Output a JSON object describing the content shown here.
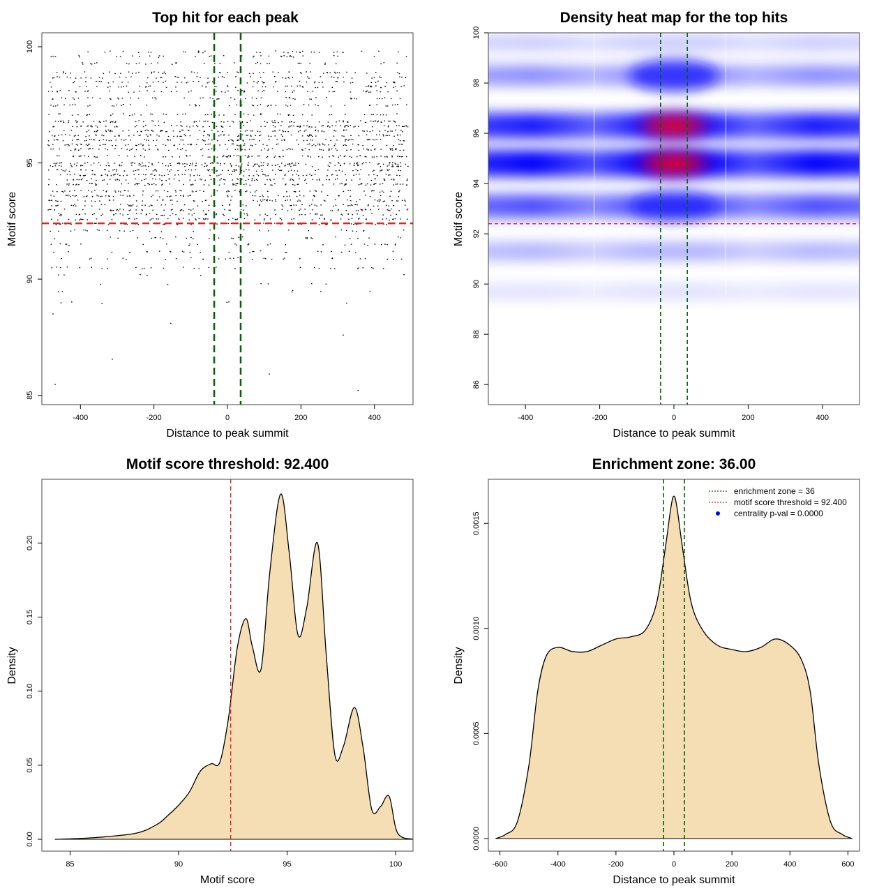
{
  "chart_data": [
    {
      "type": "scatter",
      "title": "Top hit for each peak",
      "xlabel": "Distance to peak summit",
      "ylabel": "Motif score",
      "xlim": [
        -505,
        505
      ],
      "ylim": [
        84.6,
        100.6
      ],
      "x_ticks": [
        "-400",
        "-200",
        "0",
        "200",
        "400"
      ],
      "x_tick_values": [
        -400,
        -200,
        0,
        200,
        400
      ],
      "y_ticks": [
        "85",
        "90",
        "95",
        "100"
      ],
      "y_tick_values": [
        85,
        90,
        95,
        100
      ],
      "points_description_levels": [
        99.8,
        99.6,
        99.3,
        98.9,
        98.7,
        98.5,
        98.3,
        98.1,
        97.8,
        97.5,
        97.1,
        96.8,
        96.6,
        96.4,
        96.2,
        96.0,
        95.8,
        95.6,
        95.3,
        95.0,
        94.9,
        94.7,
        94.5,
        94.3,
        94.1,
        93.8,
        93.6,
        93.4,
        93.2,
        93.0,
        92.8,
        92.6,
        92.4,
        92.1,
        91.8,
        91.5,
        91.2,
        90.9,
        90.5,
        90.2,
        89.8,
        89.5,
        89.0,
        88.5,
        88.1,
        87.6,
        86.6,
        85.9,
        85.5,
        85.2
      ],
      "vlines": [
        -36,
        36
      ],
      "vline_color": "#006400",
      "hline": 92.4,
      "hline_color": "#d62728",
      "grid": false
    },
    {
      "type": "heatmap",
      "title": "Density heat map for the top hits",
      "xlabel": "Distance to peak summit",
      "ylabel": "Motif score",
      "xlim": [
        -500,
        500
      ],
      "ylim": [
        85.2,
        100.0
      ],
      "x_ticks": [
        "-400",
        "-200",
        "0",
        "200",
        "400"
      ],
      "x_tick_values": [
        -400,
        -200,
        0,
        200,
        400
      ],
      "y_ticks": [
        "86",
        "88",
        "90",
        "92",
        "94",
        "96",
        "98",
        "100"
      ],
      "y_tick_values": [
        86,
        88,
        90,
        92,
        94,
        96,
        98,
        100
      ],
      "color_scale": [
        "#ffffff",
        "#0000ff",
        "#ff0000"
      ],
      "bands": [
        {
          "y": 94.8,
          "intensity": 1.0,
          "center_boost": 1.0
        },
        {
          "y": 96.3,
          "intensity": 0.9,
          "center_boost": 0.9
        },
        {
          "y": 93.1,
          "intensity": 0.7,
          "center_boost": 0.55
        },
        {
          "y": 98.3,
          "intensity": 0.45,
          "center_boost": 0.7
        },
        {
          "y": 99.6,
          "intensity": 0.2,
          "center_boost": 0.2
        },
        {
          "y": 91.3,
          "intensity": 0.3,
          "center_boost": 0.1
        },
        {
          "y": 89.7,
          "intensity": 0.12,
          "center_boost": 0.05
        }
      ],
      "vlines": [
        -36,
        36
      ],
      "vline_color": "#006400",
      "hline": 92.4,
      "hline_color": "#d62728",
      "grid": false
    },
    {
      "type": "area",
      "title": "Motif score threshold: 92.400",
      "xlabel": "Motif score",
      "ylabel": "Density",
      "xlim": [
        83.7,
        100.8
      ],
      "ylim": [
        -0.008,
        0.243
      ],
      "x_ticks": [
        "85",
        "90",
        "95",
        "100"
      ],
      "x_tick_values": [
        85,
        90,
        95,
        100
      ],
      "y_ticks": [
        "0.00",
        "0.05",
        "0.10",
        "0.15",
        "0.20"
      ],
      "y_tick_values": [
        0,
        0.05,
        0.1,
        0.15,
        0.2
      ],
      "x": [
        84.3,
        86.0,
        88.0,
        89.0,
        89.5,
        90.0,
        90.5,
        91.0,
        91.5,
        91.9,
        92.3,
        92.7,
        93.1,
        93.4,
        93.8,
        94.2,
        94.7,
        95.1,
        95.5,
        95.9,
        96.4,
        96.8,
        97.2,
        97.6,
        98.1,
        98.5,
        98.9,
        99.3,
        99.7,
        100.1,
        100.9
      ],
      "y": [
        0.0,
        0.001,
        0.004,
        0.01,
        0.016,
        0.023,
        0.032,
        0.046,
        0.051,
        0.052,
        0.082,
        0.129,
        0.149,
        0.13,
        0.115,
        0.18,
        0.233,
        0.193,
        0.138,
        0.156,
        0.2,
        0.125,
        0.057,
        0.063,
        0.089,
        0.062,
        0.02,
        0.022,
        0.029,
        0.004,
        0.0
      ],
      "fill_color": "#f5deb3",
      "vline": 92.4,
      "vline_color": "#d62728",
      "grid": false
    },
    {
      "type": "area",
      "title": "Enrichment zone: 36.00",
      "xlabel": "Distance to peak summit",
      "ylabel": "Density",
      "xlim": [
        -640,
        640
      ],
      "ylim": [
        -6e-05,
        0.00171
      ],
      "x_ticks": [
        "-600",
        "-400",
        "-200",
        "0",
        "200",
        "400",
        "600"
      ],
      "x_tick_values": [
        -600,
        -400,
        -200,
        0,
        200,
        400,
        600
      ],
      "y_ticks": [
        "0.0000",
        "0.0005",
        "0.0010",
        "0.0015"
      ],
      "y_tick_values": [
        0,
        0.0005,
        0.001,
        0.0015
      ],
      "x": [
        -615,
        -580,
        -540,
        -500,
        -470,
        -440,
        -400,
        -350,
        -300,
        -250,
        -200,
        -150,
        -100,
        -60,
        -30,
        -10,
        0,
        10,
        30,
        60,
        100,
        150,
        200,
        250,
        300,
        350,
        400,
        440,
        470,
        500,
        540,
        580,
        615
      ],
      "y": [
        0.0,
        2e-05,
        8e-05,
        0.00035,
        0.0007,
        0.00087,
        0.00091,
        0.00089,
        0.00089,
        0.00092,
        0.00095,
        0.00096,
        0.00099,
        0.00112,
        0.00138,
        0.00158,
        0.00163,
        0.00158,
        0.00138,
        0.00112,
        0.00099,
        0.00092,
        0.0009,
        0.00089,
        0.00091,
        0.00095,
        0.00092,
        0.00085,
        0.0007,
        0.00035,
        8e-05,
        2e-05,
        0.0
      ],
      "fill_color": "#f5deb3",
      "vlines": [
        -36,
        36
      ],
      "vline_color": "#006400",
      "legend_position": "top-right",
      "legend": [
        {
          "label": "enrichment zone = 36",
          "kind": "dotted-line",
          "color": "#006400"
        },
        {
          "label": "motif score threshold = 92.400",
          "kind": "dotted-line",
          "color": "#d62728"
        },
        {
          "label": "centrality p-val = 0.0000",
          "kind": "point",
          "color": "#0000ff"
        }
      ],
      "grid": false
    }
  ]
}
